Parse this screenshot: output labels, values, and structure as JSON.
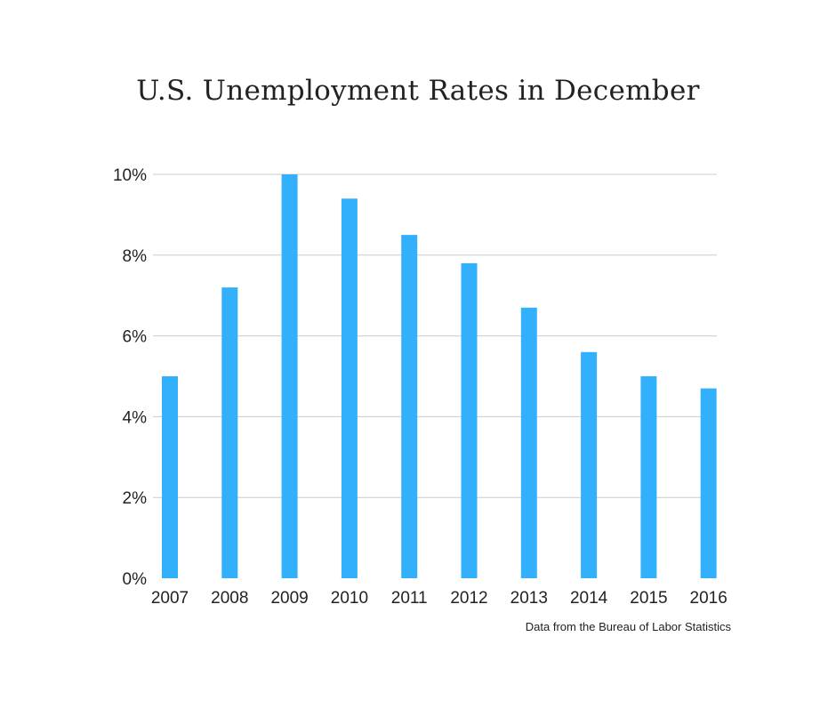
{
  "chart_data": {
    "type": "bar",
    "title": "U.S. Unemployment Rates in December",
    "categories": [
      "2007",
      "2008",
      "2009",
      "2010",
      "2011",
      "2012",
      "2013",
      "2014",
      "2015",
      "2016"
    ],
    "values": [
      5.0,
      7.2,
      10.0,
      9.4,
      8.5,
      7.8,
      6.7,
      5.6,
      5.0,
      4.7
    ],
    "unit": "%",
    "ylim": [
      0,
      10
    ],
    "yticks": [
      0,
      2,
      4,
      6,
      8,
      10
    ],
    "ytick_labels": [
      "0%",
      "2%",
      "4%",
      "6%",
      "8%",
      "10%"
    ],
    "xlabel": "",
    "ylabel": "",
    "grid": true,
    "bar_color": "#33b0fc",
    "grid_color": "#cccccc"
  },
  "source_note": "Data from the Bureau of Labor Statistics"
}
